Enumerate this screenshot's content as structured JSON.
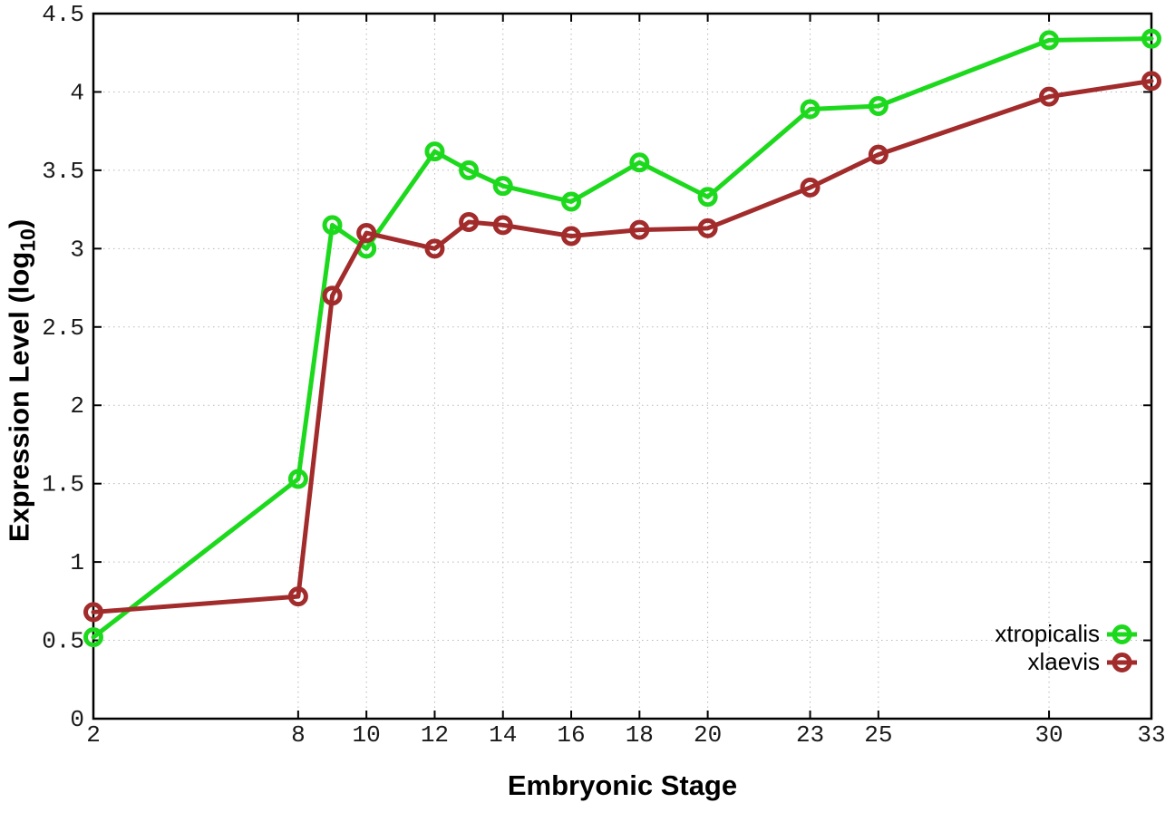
{
  "figure": {
    "background": "#ffffff",
    "x_axis_title": "Embryonic Stage",
    "y_axis_title_prefix": "Expression Level (log",
    "y_axis_title_sub": "10",
    "y_axis_title_suffix": ")"
  },
  "chart_data": {
    "type": "line",
    "title": "",
    "xlabel": "Embryonic Stage",
    "ylabel": "Expression Level (log10)",
    "x": [
      2,
      8,
      9,
      10,
      12,
      13,
      14,
      16,
      18,
      20,
      23,
      25,
      30,
      33
    ],
    "xlim": [
      2,
      33
    ],
    "ylim": [
      0,
      4.5
    ],
    "x_tick_values": [
      2,
      8,
      10,
      12,
      14,
      16,
      18,
      20,
      23,
      25,
      30,
      33
    ],
    "x_tick_labels": [
      "2",
      "8",
      "10",
      "12",
      "14",
      "16",
      "18",
      "20",
      "23",
      "25",
      "30",
      "33"
    ],
    "y_tick_values": [
      0,
      0.5,
      1,
      1.5,
      2,
      2.5,
      3,
      3.5,
      4,
      4.5
    ],
    "y_tick_labels": [
      "0",
      "0.5",
      "1",
      "1.5",
      "2",
      "2.5",
      "3",
      "3.5",
      "4",
      "4.5"
    ],
    "grid": true,
    "legend_position": "bottom-right",
    "marker": "open-circle",
    "series": [
      {
        "name": "xtropicalis",
        "color": "#1dd91d",
        "values": [
          0.52,
          1.53,
          3.15,
          3.0,
          3.62,
          3.5,
          3.4,
          3.3,
          3.55,
          3.33,
          3.89,
          3.91,
          4.33,
          4.34
        ]
      },
      {
        "name": "xlaevis",
        "color": "#a22b2b",
        "values": [
          0.68,
          0.78,
          2.7,
          3.1,
          3.0,
          3.17,
          3.15,
          3.08,
          3.12,
          3.13,
          3.39,
          3.6,
          3.97,
          4.07
        ]
      }
    ]
  }
}
